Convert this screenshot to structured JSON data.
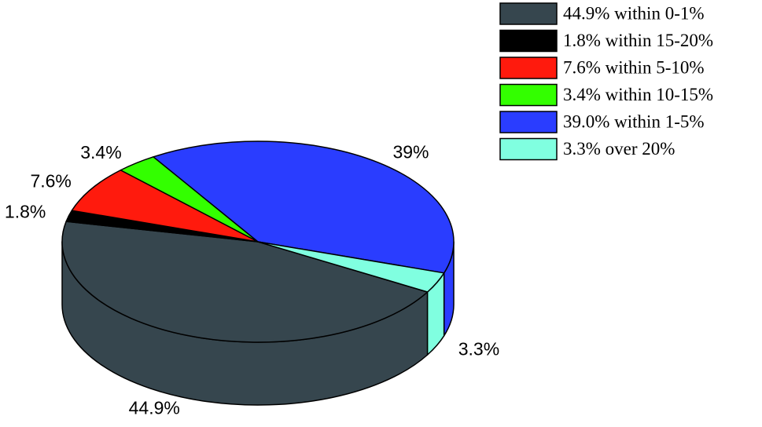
{
  "chart_data": {
    "type": "pie",
    "categories": [
      "44.9% within 0-1%",
      "1.8% within 15-20%",
      "7.6% within 5-10%",
      "3.4% within 10-15%",
      "39.0% within 1-5%",
      "3.3% over 20%"
    ],
    "values": [
      44.9,
      1.8,
      7.6,
      3.4,
      39,
      3.3
    ],
    "value_labels": [
      "44.9%",
      "1.8%",
      "7.6%",
      "3.4%",
      "39%",
      "3.3%"
    ],
    "colors": [
      "#36464e",
      "#000000",
      "#ff1a0d",
      "#33ff00",
      "#2a3dff",
      "#80ffe0"
    ],
    "legend": "top-right"
  }
}
